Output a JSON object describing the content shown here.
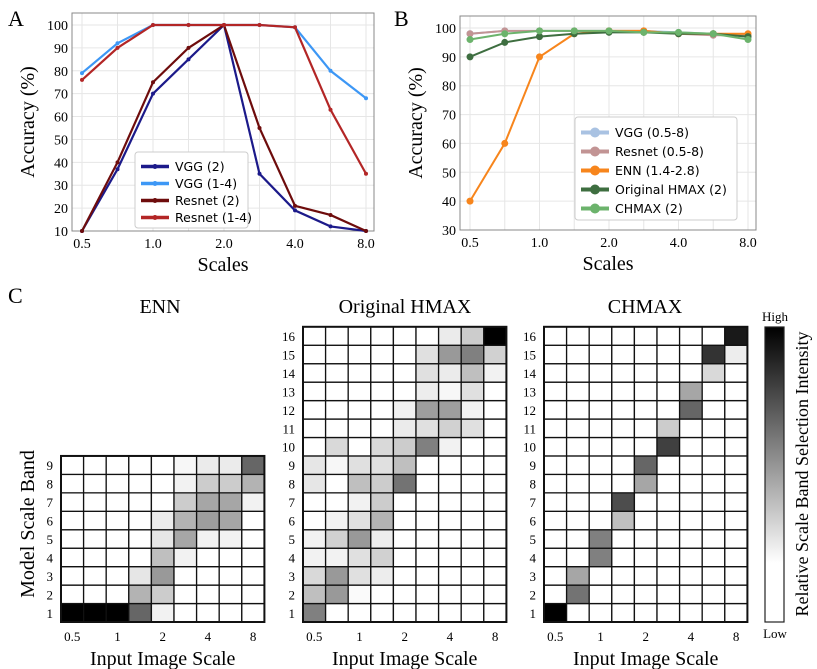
{
  "panel_labels": {
    "a": "A",
    "b": "B",
    "c": "C"
  },
  "chart_data": [
    {
      "id": "A",
      "type": "line",
      "xlabel": "Scales",
      "ylabel": "Accuracy (%)",
      "x": [
        0.5,
        0.71,
        1.0,
        1.41,
        2.0,
        2.83,
        4.0,
        5.66,
        8.0
      ],
      "x_scale": "log2",
      "xticks": [
        "0.5",
        "1.0",
        "2.0",
        "4.0",
        "8.0"
      ],
      "yticks": [
        "10",
        "20",
        "30",
        "40",
        "50",
        "60",
        "70",
        "80",
        "90",
        "100"
      ],
      "ylim": [
        10,
        100
      ],
      "grid": true,
      "legend_position": "lower-left",
      "series": [
        {
          "name": "VGG (2)",
          "color": "#1c1a8a",
          "values": [
            10,
            37,
            70,
            85,
            100,
            35,
            19,
            12,
            10
          ]
        },
        {
          "name": "VGG (1-4)",
          "color": "#3d97f5",
          "values": [
            79,
            92,
            100,
            100,
            100,
            100,
            99,
            80,
            68
          ]
        },
        {
          "name": "Resnet (2)",
          "color": "#6e0c0c",
          "values": [
            10,
            40,
            75,
            90,
            100,
            55,
            21,
            17,
            10
          ]
        },
        {
          "name": "Resnet (1-4)",
          "color": "#b32626",
          "values": [
            76,
            90,
            100,
            100,
            100,
            100,
            99,
            63,
            35
          ]
        }
      ]
    },
    {
      "id": "B",
      "type": "line",
      "xlabel": "Scales",
      "ylabel": "Accuracy (%)",
      "x": [
        0.5,
        0.71,
        1.0,
        1.41,
        2.0,
        2.83,
        4.0,
        5.66,
        8.0
      ],
      "x_scale": "log2",
      "xticks": [
        "0.5",
        "1.0",
        "2.0",
        "4.0",
        "8.0"
      ],
      "yticks": [
        "30",
        "40",
        "50",
        "60",
        "70",
        "80",
        "90",
        "100"
      ],
      "ylim": [
        30,
        100
      ],
      "grid": true,
      "legend_position": "center-right",
      "series": [
        {
          "name": "VGG (0.5-8)",
          "color": "#a9c2e2",
          "values": [
            98,
            99,
            99,
            99,
            99,
            99,
            98.5,
            98,
            97
          ]
        },
        {
          "name": "Resnet (0.5-8)",
          "color": "#c29494",
          "values": [
            98,
            99,
            99,
            99,
            99,
            99,
            98,
            97.5,
            97.5
          ]
        },
        {
          "name": "ENN (1.4-2.8)",
          "color": "#f7851c",
          "values": [
            40,
            60,
            90,
            98,
            99,
            99,
            98,
            98,
            98
          ]
        },
        {
          "name": "Original HMAX (2)",
          "color": "#3e6e40",
          "values": [
            90,
            95,
            97,
            98,
            98.5,
            98.5,
            98,
            98,
            97
          ]
        },
        {
          "name": "CHMAX (2)",
          "color": "#6cb36c",
          "values": [
            96,
            98,
            99,
            99,
            99,
            98.5,
            98.5,
            98,
            96
          ]
        }
      ]
    },
    {
      "id": "C-ENN",
      "type": "heatmap",
      "title": "ENN",
      "xlabel": "Input Image Scale",
      "ylabel": "Model Scale Band",
      "xticks": [
        "0.5",
        "1",
        "2",
        "4",
        "8"
      ],
      "yticks": [
        "1",
        "2",
        "3",
        "4",
        "5",
        "6",
        "7",
        "8",
        "9"
      ],
      "values_by_band": [
        [
          1,
          1,
          1,
          0.6,
          0.05,
          0,
          0,
          0,
          0
        ],
        [
          0,
          0,
          0,
          0.3,
          0.2,
          0,
          0,
          0,
          0
        ],
        [
          0,
          0,
          0,
          0.1,
          0.4,
          0,
          0,
          0,
          0
        ],
        [
          0,
          0,
          0,
          0,
          0.25,
          0.05,
          0,
          0,
          0
        ],
        [
          0,
          0,
          0,
          0,
          0.1,
          0.35,
          0.05,
          0.05,
          0
        ],
        [
          0,
          0,
          0,
          0,
          0.08,
          0.3,
          0.38,
          0.35,
          0
        ],
        [
          0,
          0,
          0,
          0,
          0,
          0.2,
          0.35,
          0.35,
          0.05
        ],
        [
          0,
          0,
          0,
          0,
          0,
          0.05,
          0.2,
          0.2,
          0.3
        ],
        [
          0,
          0,
          0,
          0,
          0,
          0.03,
          0.08,
          0.08,
          0.6
        ]
      ]
    },
    {
      "id": "C-HMAX",
      "type": "heatmap",
      "title": "Original HMAX",
      "xlabel": "Input Image Scale",
      "xticks": [
        "0.5",
        "1",
        "2",
        "4",
        "8"
      ],
      "yticks": [
        "1",
        "2",
        "3",
        "4",
        "5",
        "6",
        "7",
        "8",
        "9",
        "10",
        "11",
        "12",
        "13",
        "14",
        "15",
        "16"
      ],
      "values_by_band": [
        [
          0.5,
          0,
          0,
          0,
          0,
          0,
          0,
          0,
          0
        ],
        [
          0.25,
          0.4,
          0.02,
          0,
          0,
          0,
          0,
          0,
          0
        ],
        [
          0.15,
          0.4,
          0.12,
          0.07,
          0,
          0,
          0,
          0,
          0
        ],
        [
          0.05,
          0.05,
          0.12,
          0.18,
          0,
          0,
          0,
          0,
          0
        ],
        [
          0.05,
          0.18,
          0.4,
          0.07,
          0,
          0,
          0,
          0,
          0
        ],
        [
          0,
          0.05,
          0.12,
          0.3,
          0,
          0,
          0,
          0,
          0
        ],
        [
          0,
          0,
          0.05,
          0.2,
          0,
          0,
          0,
          0,
          0
        ],
        [
          0.1,
          0,
          0.25,
          0.2,
          0.55,
          0,
          0,
          0,
          0
        ],
        [
          0.1,
          0.03,
          0.12,
          0.12,
          0.25,
          0,
          0,
          0,
          0
        ],
        [
          0,
          0.15,
          0,
          0.15,
          0.2,
          0.5,
          0.05,
          0,
          0
        ],
        [
          0,
          0,
          0,
          0,
          0.08,
          0.12,
          0.18,
          0.12,
          0
        ],
        [
          0,
          0,
          0,
          0,
          0.05,
          0.38,
          0.38,
          0.05,
          0
        ],
        [
          0,
          0,
          0,
          0,
          0,
          0.07,
          0.03,
          0.12,
          0
        ],
        [
          0,
          0,
          0,
          0,
          0,
          0.12,
          0.08,
          0.25,
          0.05
        ],
        [
          0,
          0,
          0,
          0,
          0,
          0.12,
          0.4,
          0.5,
          0.18
        ],
        [
          0,
          0,
          0,
          0,
          0,
          0,
          0.08,
          0.2,
          1
        ]
      ]
    },
    {
      "id": "C-CHMAX",
      "type": "heatmap",
      "title": "CHMAX",
      "xlabel": "Input Image Scale",
      "xticks": [
        "0.5",
        "1",
        "2",
        "4",
        "8"
      ],
      "yticks": [
        "1",
        "2",
        "3",
        "4",
        "5",
        "6",
        "7",
        "8",
        "9",
        "10",
        "11",
        "12",
        "13",
        "14",
        "15",
        "16"
      ],
      "values_by_band": [
        [
          1,
          0,
          0,
          0,
          0,
          0,
          0,
          0,
          0
        ],
        [
          0,
          0.55,
          0,
          0,
          0,
          0,
          0,
          0,
          0
        ],
        [
          0,
          0.35,
          0,
          0,
          0,
          0,
          0,
          0,
          0
        ],
        [
          0,
          0,
          0.5,
          0,
          0,
          0,
          0,
          0,
          0
        ],
        [
          0,
          0,
          0.5,
          0,
          0,
          0,
          0,
          0,
          0
        ],
        [
          0,
          0,
          0,
          0.25,
          0,
          0,
          0,
          0,
          0
        ],
        [
          0,
          0,
          0,
          0.7,
          0,
          0,
          0,
          0,
          0
        ],
        [
          0,
          0,
          0,
          0,
          0.35,
          0,
          0,
          0,
          0
        ],
        [
          0,
          0,
          0,
          0,
          0.6,
          0,
          0,
          0,
          0
        ],
        [
          0,
          0,
          0,
          0,
          0,
          0.75,
          0,
          0,
          0
        ],
        [
          0,
          0,
          0,
          0,
          0,
          0.2,
          0,
          0,
          0
        ],
        [
          0,
          0,
          0,
          0,
          0,
          0,
          0.6,
          0,
          0
        ],
        [
          0,
          0,
          0,
          0,
          0,
          0,
          0.35,
          0,
          0
        ],
        [
          0,
          0,
          0,
          0,
          0,
          0,
          0,
          0.15,
          0
        ],
        [
          0,
          0,
          0,
          0,
          0,
          0,
          0,
          0.8,
          0.07
        ],
        [
          0,
          0,
          0,
          0,
          0,
          0,
          0,
          0,
          0.9
        ]
      ],
      "colorbar": {
        "label": "Relative Scale Band Selection Intensity",
        "high": "High",
        "low": "Low"
      }
    }
  ]
}
